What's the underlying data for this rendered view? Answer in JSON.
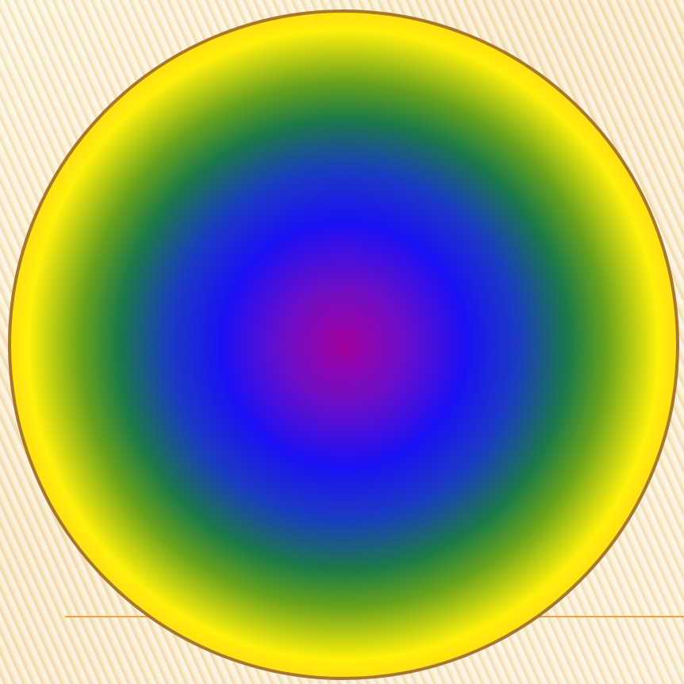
{
  "slide": {
    "background_color": "#fbe7bd",
    "accent_line_color": "#f2a33c",
    "disc": {
      "outline_color": "#a8782a",
      "gradient_colors_center_to_edge": [
        "#a1009d",
        "#1a10f4",
        "#1a7a46",
        "#fff10a",
        "#fa9a1a",
        "#e3461a"
      ]
    }
  }
}
